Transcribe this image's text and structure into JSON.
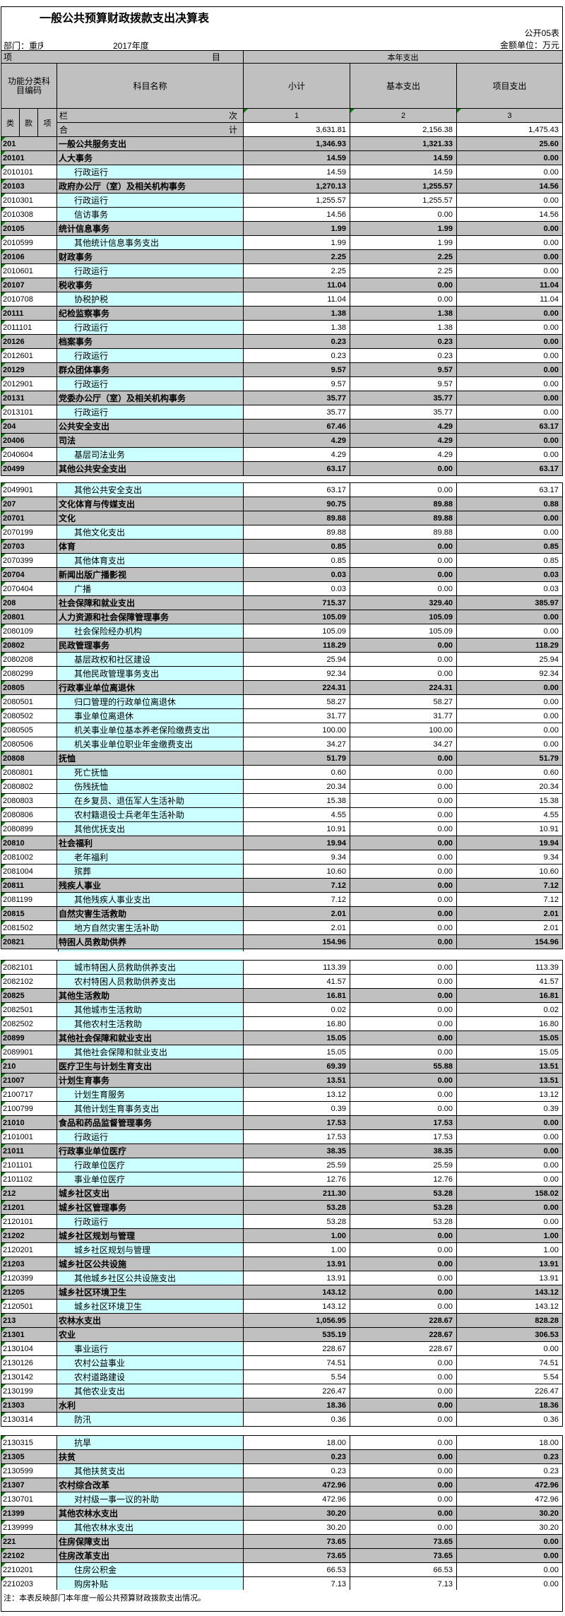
{
  "page": {
    "title": "一般公共预算财政拨款支出决算表",
    "sheet_label": "公开05表",
    "unit_label": "金额单位：万元",
    "department_prefix": "部门：",
    "department_value": "重庆",
    "year_label": "2017年度",
    "note": "注：本表反映部门本年度一般公共预算财政拨款支出情况。"
  },
  "colors": {
    "header_fill": "#C0C0C0",
    "detail_name_fill": "#CCFFFF",
    "triangle": "#008000"
  },
  "table": {
    "header": {
      "item_first_char": "项",
      "item_second_char": "目",
      "current_year_expense": "本年支出",
      "function_code_label": "功能分类科目编码",
      "subject_name_label": "科目名称",
      "subtotal_label": "小计",
      "basic_expense_label": "基本支出",
      "project_expense_label": "项目支出",
      "class_label": "类",
      "section_label": "款",
      "item_label": "项",
      "column_row_first_char": "栏",
      "column_row_second_char": "次",
      "column_numbers": [
        "1",
        "2",
        "3"
      ],
      "total_first_char": "合",
      "total_second_char": "计",
      "total_values": [
        "3,631.81",
        "2,156.38",
        "1,475.43"
      ]
    },
    "rows": [
      {
        "type": "section",
        "code": "201",
        "name": "一般公共服务支出",
        "subtotal": "1,346.93",
        "basic": "1,321.33",
        "project": "25.60"
      },
      {
        "type": "section",
        "code": "20101",
        "name": "人大事务",
        "subtotal": "14.59",
        "basic": "14.59",
        "project": "0.00"
      },
      {
        "type": "detail",
        "code": "2010101",
        "name": "行政运行",
        "subtotal": "14.59",
        "basic": "14.59",
        "project": "0.00"
      },
      {
        "type": "section",
        "code": "20103",
        "name": "政府办公厅（室）及相关机构事务",
        "subtotal": "1,270.13",
        "basic": "1,255.57",
        "project": "14.56"
      },
      {
        "type": "detail",
        "code": "2010301",
        "name": "行政运行",
        "subtotal": "1,255.57",
        "basic": "1,255.57",
        "project": "0.00"
      },
      {
        "type": "detail",
        "code": "2010308",
        "name": "信访事务",
        "subtotal": "14.56",
        "basic": "0.00",
        "project": "14.56"
      },
      {
        "type": "section",
        "code": "20105",
        "name": "统计信息事务",
        "subtotal": "1.99",
        "basic": "1.99",
        "project": "0.00"
      },
      {
        "type": "detail",
        "code": "2010599",
        "name": "其他统计信息事务支出",
        "subtotal": "1.99",
        "basic": "1.99",
        "project": "0.00"
      },
      {
        "type": "section",
        "code": "20106",
        "name": "财政事务",
        "subtotal": "2.25",
        "basic": "2.25",
        "project": "0.00"
      },
      {
        "type": "detail",
        "code": "2010601",
        "name": "行政运行",
        "subtotal": "2.25",
        "basic": "2.25",
        "project": "0.00"
      },
      {
        "type": "section",
        "code": "20107",
        "name": "税收事务",
        "subtotal": "11.04",
        "basic": "0.00",
        "project": "11.04"
      },
      {
        "type": "detail",
        "code": "2010708",
        "name": "协税护税",
        "subtotal": "11.04",
        "basic": "0.00",
        "project": "11.04"
      },
      {
        "type": "section",
        "code": "20111",
        "name": "纪检监察事务",
        "subtotal": "1.38",
        "basic": "1.38",
        "project": "0.00"
      },
      {
        "type": "detail",
        "code": "2011101",
        "name": "行政运行",
        "subtotal": "1.38",
        "basic": "1.38",
        "project": "0.00"
      },
      {
        "type": "section",
        "code": "20126",
        "name": "档案事务",
        "subtotal": "0.23",
        "basic": "0.23",
        "project": "0.00"
      },
      {
        "type": "detail",
        "code": "2012601",
        "name": "行政运行",
        "subtotal": "0.23",
        "basic": "0.23",
        "project": "0.00"
      },
      {
        "type": "section",
        "code": "20129",
        "name": "群众团体事务",
        "subtotal": "9.57",
        "basic": "9.57",
        "project": "0.00"
      },
      {
        "type": "detail",
        "code": "2012901",
        "name": "行政运行",
        "subtotal": "9.57",
        "basic": "9.57",
        "project": "0.00"
      },
      {
        "type": "section",
        "code": "20131",
        "name": "党委办公厅（室）及相关机构事务",
        "subtotal": "35.77",
        "basic": "35.77",
        "project": "0.00"
      },
      {
        "type": "detail",
        "code": "2013101",
        "name": "行政运行",
        "subtotal": "35.77",
        "basic": "35.77",
        "project": "0.00"
      },
      {
        "type": "section",
        "code": "204",
        "name": "公共安全支出",
        "subtotal": "67.46",
        "basic": "4.29",
        "project": "63.17"
      },
      {
        "type": "section",
        "code": "20406",
        "name": "司法",
        "subtotal": "4.29",
        "basic": "4.29",
        "project": "0.00"
      },
      {
        "type": "detail",
        "code": "2040604",
        "name": "基层司法业务",
        "subtotal": "4.29",
        "basic": "4.29",
        "project": "0.00"
      },
      {
        "type": "section",
        "code": "20499",
        "name": "其他公共安全支出",
        "subtotal": "63.17",
        "basic": "0.00",
        "project": "63.17"
      },
      {
        "type": "gap",
        "height": 10
      },
      {
        "type": "detail",
        "code": "2049901",
        "name": "其他公共安全支出",
        "subtotal": "63.17",
        "basic": "0.00",
        "project": "63.17"
      },
      {
        "type": "section",
        "code": "207",
        "name": "文化体育与传媒支出",
        "subtotal": "90.75",
        "basic": "89.88",
        "project": "0.88"
      },
      {
        "type": "section",
        "code": "20701",
        "name": "文化",
        "subtotal": "89.88",
        "basic": "89.88",
        "project": "0.00"
      },
      {
        "type": "detail",
        "code": "2070199",
        "name": "其他文化支出",
        "subtotal": "89.88",
        "basic": "89.88",
        "project": "0.00"
      },
      {
        "type": "section",
        "code": "20703",
        "name": "体育",
        "subtotal": "0.85",
        "basic": "0.00",
        "project": "0.85"
      },
      {
        "type": "detail",
        "code": "2070399",
        "name": "其他体育支出",
        "subtotal": "0.85",
        "basic": "0.00",
        "project": "0.85"
      },
      {
        "type": "section",
        "code": "20704",
        "name": "新闻出版广播影视",
        "subtotal": "0.03",
        "basic": "0.00",
        "project": "0.03"
      },
      {
        "type": "detail",
        "code": "2070404",
        "name": "广播",
        "subtotal": "0.03",
        "basic": "0.00",
        "project": "0.03"
      },
      {
        "type": "section",
        "code": "208",
        "name": "社会保障和就业支出",
        "subtotal": "715.37",
        "basic": "329.40",
        "project": "385.97"
      },
      {
        "type": "section",
        "code": "20801",
        "name": "人力资源和社会保障管理事务",
        "subtotal": "105.09",
        "basic": "105.09",
        "project": "0.00"
      },
      {
        "type": "detail",
        "code": "2080109",
        "name": "社会保险经办机构",
        "subtotal": "105.09",
        "basic": "105.09",
        "project": "0.00"
      },
      {
        "type": "section",
        "code": "20802",
        "name": "民政管理事务",
        "subtotal": "118.29",
        "basic": "0.00",
        "project": "118.29"
      },
      {
        "type": "detail",
        "code": "2080208",
        "name": "基层政权和社区建设",
        "subtotal": "25.94",
        "basic": "0.00",
        "project": "25.94"
      },
      {
        "type": "detail",
        "code": "2080299",
        "name": "其他民政管理事务支出",
        "subtotal": "92.34",
        "basic": "0.00",
        "project": "92.34"
      },
      {
        "type": "section",
        "code": "20805",
        "name": "行政事业单位离退休",
        "subtotal": "224.31",
        "basic": "224.31",
        "project": "0.00"
      },
      {
        "type": "detail",
        "code": "2080501",
        "name": "归口管理的行政单位离退休",
        "subtotal": "58.27",
        "basic": "58.27",
        "project": "0.00"
      },
      {
        "type": "detail",
        "code": "2080502",
        "name": "事业单位离退休",
        "subtotal": "31.77",
        "basic": "31.77",
        "project": "0.00"
      },
      {
        "type": "detail",
        "code": "2080505",
        "name": "机关事业单位基本养老保险缴费支出",
        "subtotal": "100.00",
        "basic": "100.00",
        "project": "0.00"
      },
      {
        "type": "detail",
        "code": "2080506",
        "name": "机关事业单位职业年金缴费支出",
        "subtotal": "34.27",
        "basic": "34.27",
        "project": "0.00"
      },
      {
        "type": "section",
        "code": "20808",
        "name": "抚恤",
        "subtotal": "51.79",
        "basic": "0.00",
        "project": "51.79"
      },
      {
        "type": "detail",
        "code": "2080801",
        "name": "死亡抚恤",
        "subtotal": "0.60",
        "basic": "0.00",
        "project": "0.60"
      },
      {
        "type": "detail",
        "code": "2080802",
        "name": "伤残抚恤",
        "subtotal": "20.34",
        "basic": "0.00",
        "project": "20.34"
      },
      {
        "type": "detail",
        "code": "2080803",
        "name": "在乡复员、退伍军人生活补助",
        "subtotal": "15.38",
        "basic": "0.00",
        "project": "15.38"
      },
      {
        "type": "detail",
        "code": "2080806",
        "name": "农村籍退役士兵老年生活补助",
        "subtotal": "4.55",
        "basic": "0.00",
        "project": "4.55"
      },
      {
        "type": "detail",
        "code": "2080899",
        "name": "其他优抚支出",
        "subtotal": "10.91",
        "basic": "0.00",
        "project": "10.91"
      },
      {
        "type": "section",
        "code": "20810",
        "name": "社会福利",
        "subtotal": "19.94",
        "basic": "0.00",
        "project": "19.94"
      },
      {
        "type": "detail",
        "code": "2081002",
        "name": "老年福利",
        "subtotal": "9.34",
        "basic": "0.00",
        "project": "9.34"
      },
      {
        "type": "detail",
        "code": "2081004",
        "name": "殡葬",
        "subtotal": "10.60",
        "basic": "0.00",
        "project": "10.60"
      },
      {
        "type": "section",
        "code": "20811",
        "name": "残疾人事业",
        "subtotal": "7.12",
        "basic": "0.00",
        "project": "7.12"
      },
      {
        "type": "detail",
        "code": "2081199",
        "name": "其他残疾人事业支出",
        "subtotal": "7.12",
        "basic": "0.00",
        "project": "7.12"
      },
      {
        "type": "section",
        "code": "20815",
        "name": "自然灾害生活救助",
        "subtotal": "2.01",
        "basic": "0.00",
        "project": "2.01"
      },
      {
        "type": "detail",
        "code": "2081502",
        "name": "地方自然灾害生活补助",
        "subtotal": "2.01",
        "basic": "0.00",
        "project": "2.01"
      },
      {
        "type": "section",
        "code": "20821",
        "name": "特困人员救助供养",
        "subtotal": "154.96",
        "basic": "0.00",
        "project": "154.96"
      },
      {
        "type": "gap",
        "height": 16,
        "sliver": true
      },
      {
        "type": "detail",
        "code": "2082101",
        "name": "城市特困人员救助供养支出",
        "subtotal": "113.39",
        "basic": "0.00",
        "project": "113.39"
      },
      {
        "type": "detail",
        "code": "2082102",
        "name": "农村特困人员救助供养支出",
        "subtotal": "41.57",
        "basic": "0.00",
        "project": "41.57"
      },
      {
        "type": "section",
        "code": "20825",
        "name": "其他生活救助",
        "subtotal": "16.81",
        "basic": "0.00",
        "project": "16.81"
      },
      {
        "type": "detail",
        "code": "2082501",
        "name": "其他城市生活救助",
        "subtotal": "0.02",
        "basic": "0.00",
        "project": "0.02"
      },
      {
        "type": "detail",
        "code": "2082502",
        "name": "其他农村生活救助",
        "subtotal": "16.80",
        "basic": "0.00",
        "project": "16.80"
      },
      {
        "type": "section",
        "code": "20899",
        "name": "其他社会保障和就业支出",
        "subtotal": "15.05",
        "basic": "0.00",
        "project": "15.05"
      },
      {
        "type": "detail",
        "code": "2089901",
        "name": "其他社会保障和就业支出",
        "subtotal": "15.05",
        "basic": "0.00",
        "project": "15.05"
      },
      {
        "type": "section",
        "code": "210",
        "name": "医疗卫生与计划生育支出",
        "subtotal": "69.39",
        "basic": "55.88",
        "project": "13.51"
      },
      {
        "type": "section",
        "code": "21007",
        "name": "计划生育事务",
        "subtotal": "13.51",
        "basic": "0.00",
        "project": "13.51"
      },
      {
        "type": "detail",
        "code": "2100717",
        "name": "计划生育服务",
        "subtotal": "13.12",
        "basic": "0.00",
        "project": "13.12"
      },
      {
        "type": "detail",
        "code": "2100799",
        "name": "其他计划生育事务支出",
        "subtotal": "0.39",
        "basic": "0.00",
        "project": "0.39"
      },
      {
        "type": "section",
        "code": "21010",
        "name": "食品和药品监督管理事务",
        "subtotal": "17.53",
        "basic": "17.53",
        "project": "0.00"
      },
      {
        "type": "detail",
        "code": "2101001",
        "name": "行政运行",
        "subtotal": "17.53",
        "basic": "17.53",
        "project": "0.00"
      },
      {
        "type": "section",
        "code": "21011",
        "name": "行政事业单位医疗",
        "subtotal": "38.35",
        "basic": "38.35",
        "project": "0.00"
      },
      {
        "type": "detail",
        "code": "2101101",
        "name": "行政单位医疗",
        "subtotal": "25.59",
        "basic": "25.59",
        "project": "0.00"
      },
      {
        "type": "detail",
        "code": "2101102",
        "name": "事业单位医疗",
        "subtotal": "12.76",
        "basic": "12.76",
        "project": "0.00"
      },
      {
        "type": "section",
        "code": "212",
        "name": "城乡社区支出",
        "subtotal": "211.30",
        "basic": "53.28",
        "project": "158.02"
      },
      {
        "type": "section",
        "code": "21201",
        "name": "城乡社区管理事务",
        "subtotal": "53.28",
        "basic": "53.28",
        "project": "0.00"
      },
      {
        "type": "detail",
        "code": "2120101",
        "name": "行政运行",
        "subtotal": "53.28",
        "basic": "53.28",
        "project": "0.00"
      },
      {
        "type": "section",
        "code": "21202",
        "name": "城乡社区规划与管理",
        "subtotal": "1.00",
        "basic": "0.00",
        "project": "1.00"
      },
      {
        "type": "detail",
        "code": "2120201",
        "name": "城乡社区规划与管理",
        "subtotal": "1.00",
        "basic": "0.00",
        "project": "1.00"
      },
      {
        "type": "section",
        "code": "21203",
        "name": "城乡社区公共设施",
        "subtotal": "13.91",
        "basic": "0.00",
        "project": "13.91"
      },
      {
        "type": "detail",
        "code": "2120399",
        "name": "其他城乡社区公共设施支出",
        "subtotal": "13.91",
        "basic": "0.00",
        "project": "13.91"
      },
      {
        "type": "section",
        "code": "21205",
        "name": "城乡社区环境卫生",
        "subtotal": "143.12",
        "basic": "0.00",
        "project": "143.12"
      },
      {
        "type": "detail",
        "code": "2120501",
        "name": "城乡社区环境卫生",
        "subtotal": "143.12",
        "basic": "0.00",
        "project": "143.12"
      },
      {
        "type": "section",
        "code": "213",
        "name": "农林水支出",
        "subtotal": "1,056.95",
        "basic": "228.67",
        "project": "828.28"
      },
      {
        "type": "section",
        "code": "21301",
        "name": "农业",
        "subtotal": "535.19",
        "basic": "228.67",
        "project": "306.53"
      },
      {
        "type": "detail",
        "code": "2130104",
        "name": "事业运行",
        "subtotal": "228.67",
        "basic": "228.67",
        "project": "0.00"
      },
      {
        "type": "detail",
        "code": "2130126",
        "name": "农村公益事业",
        "subtotal": "74.51",
        "basic": "0.00",
        "project": "74.51"
      },
      {
        "type": "detail",
        "code": "2130142",
        "name": "农村道路建设",
        "subtotal": "5.54",
        "basic": "0.00",
        "project": "5.54"
      },
      {
        "type": "detail",
        "code": "2130199",
        "name": "其他农业支出",
        "subtotal": "226.47",
        "basic": "0.00",
        "project": "226.47"
      },
      {
        "type": "section",
        "code": "21303",
        "name": "水利",
        "subtotal": "18.36",
        "basic": "0.00",
        "project": "18.36"
      },
      {
        "type": "detail",
        "code": "2130314",
        "name": "防汛",
        "subtotal": "0.36",
        "basic": "0.00",
        "project": "0.36"
      },
      {
        "type": "gap",
        "height": 13
      },
      {
        "type": "detail",
        "code": "2130315",
        "name": "抗旱",
        "subtotal": "18.00",
        "basic": "0.00",
        "project": "18.00"
      },
      {
        "type": "section",
        "code": "21305",
        "name": "扶贫",
        "subtotal": "0.23",
        "basic": "0.00",
        "project": "0.23"
      },
      {
        "type": "detail",
        "code": "2130599",
        "name": "其他扶贫支出",
        "subtotal": "0.23",
        "basic": "0.00",
        "project": "0.23"
      },
      {
        "type": "section",
        "code": "21307",
        "name": "农村综合改革",
        "subtotal": "472.96",
        "basic": "0.00",
        "project": "472.96"
      },
      {
        "type": "detail",
        "code": "2130701",
        "name": "对村级一事一议的补助",
        "subtotal": "472.96",
        "basic": "0.00",
        "project": "472.96"
      },
      {
        "type": "section",
        "code": "21399",
        "name": "其他农林水支出",
        "subtotal": "30.20",
        "basic": "0.00",
        "project": "30.20"
      },
      {
        "type": "detail",
        "code": "2139999",
        "name": "其他农林水支出",
        "subtotal": "30.20",
        "basic": "0.00",
        "project": "30.20"
      },
      {
        "type": "section",
        "code": "221",
        "name": "住房保障支出",
        "subtotal": "73.65",
        "basic": "73.65",
        "project": "0.00"
      },
      {
        "type": "section",
        "code": "22102",
        "name": "住房改革支出",
        "subtotal": "73.65",
        "basic": "73.65",
        "project": "0.00"
      },
      {
        "type": "detail",
        "code": "2210201",
        "name": "住房公积金",
        "subtotal": "66.53",
        "basic": "66.53",
        "project": "0.00"
      },
      {
        "type": "detail",
        "code": "2210203",
        "name": "购房补贴",
        "subtotal": "7.13",
        "basic": "7.13",
        "project": "0.00"
      }
    ]
  }
}
